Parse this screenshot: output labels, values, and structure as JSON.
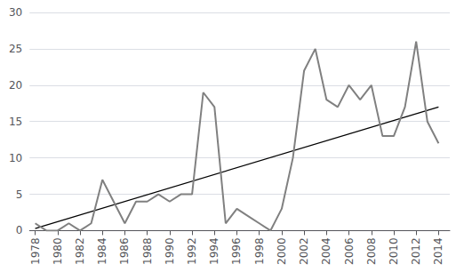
{
  "chart_data": {
    "type": "line",
    "series": [
      {
        "type": "line",
        "color": "#808080",
        "x": [
          1978,
          1979,
          1980,
          1981,
          1982,
          1983,
          1984,
          1985,
          1986,
          1987,
          1988,
          1989,
          1990,
          1991,
          1992,
          1993,
          1994,
          1995,
          1996,
          1997,
          1998,
          1999,
          2000,
          2001,
          2002,
          2003,
          2004,
          2005,
          2006,
          2007,
          2008,
          2009,
          2010,
          2011,
          2012,
          2013,
          2014
        ],
        "values": [
          1,
          0,
          0,
          1,
          0,
          1,
          7,
          4,
          1,
          4,
          4,
          5,
          4,
          5,
          5,
          19,
          17,
          1,
          3,
          2,
          1,
          0,
          3,
          10,
          22,
          25,
          18,
          17,
          20,
          18,
          20,
          13,
          13,
          17,
          26,
          15,
          12
        ]
      },
      {
        "type": "line",
        "color": "#000000",
        "x": [
          1978,
          2014
        ],
        "values": [
          0.3,
          17.0
        ]
      }
    ],
    "xlim": [
      1977.5,
      2015
    ],
    "xticks": [
      1978,
      1980,
      1982,
      1984,
      1986,
      1988,
      1990,
      1992,
      1994,
      1996,
      1998,
      2000,
      2002,
      2004,
      2006,
      2008,
      2010,
      2012,
      2014
    ],
    "ylim": [
      0,
      30
    ],
    "yticks": [
      0,
      5,
      10,
      15,
      20,
      25,
      30
    ],
    "grid": true
  }
}
